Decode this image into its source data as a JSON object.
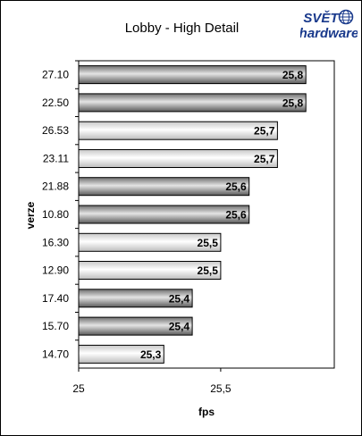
{
  "brand": {
    "logo_line1": "SVĚT",
    "logo_line2": "hardware",
    "logo_color": "#1a3a8c"
  },
  "chart_data": {
    "type": "bar",
    "orientation": "horizontal",
    "title": "Lobby - High Detail",
    "xlabel": "fps",
    "ylabel": "verze",
    "xlim": [
      25,
      25.9
    ],
    "xticks": [
      25,
      25.5
    ],
    "xtick_labels": [
      "25",
      "25,5"
    ],
    "grid": false,
    "categories": [
      "27.10",
      "22.50",
      "26.53",
      "23.11",
      "21.88",
      "10.80",
      "16.30",
      "12.90",
      "17.40",
      "15.70",
      "14.70"
    ],
    "values": [
      25.8,
      25.8,
      25.7,
      25.7,
      25.6,
      25.6,
      25.5,
      25.5,
      25.4,
      25.4,
      25.3
    ],
    "value_labels": [
      "25,8",
      "25,8",
      "25,7",
      "25,7",
      "25,6",
      "25,6",
      "25,5",
      "25,5",
      "25,4",
      "25,4",
      "25,3"
    ],
    "bar_styles": [
      "dark",
      "dark",
      "light",
      "light",
      "dark",
      "dark",
      "light",
      "light",
      "dark",
      "dark",
      "light"
    ]
  }
}
